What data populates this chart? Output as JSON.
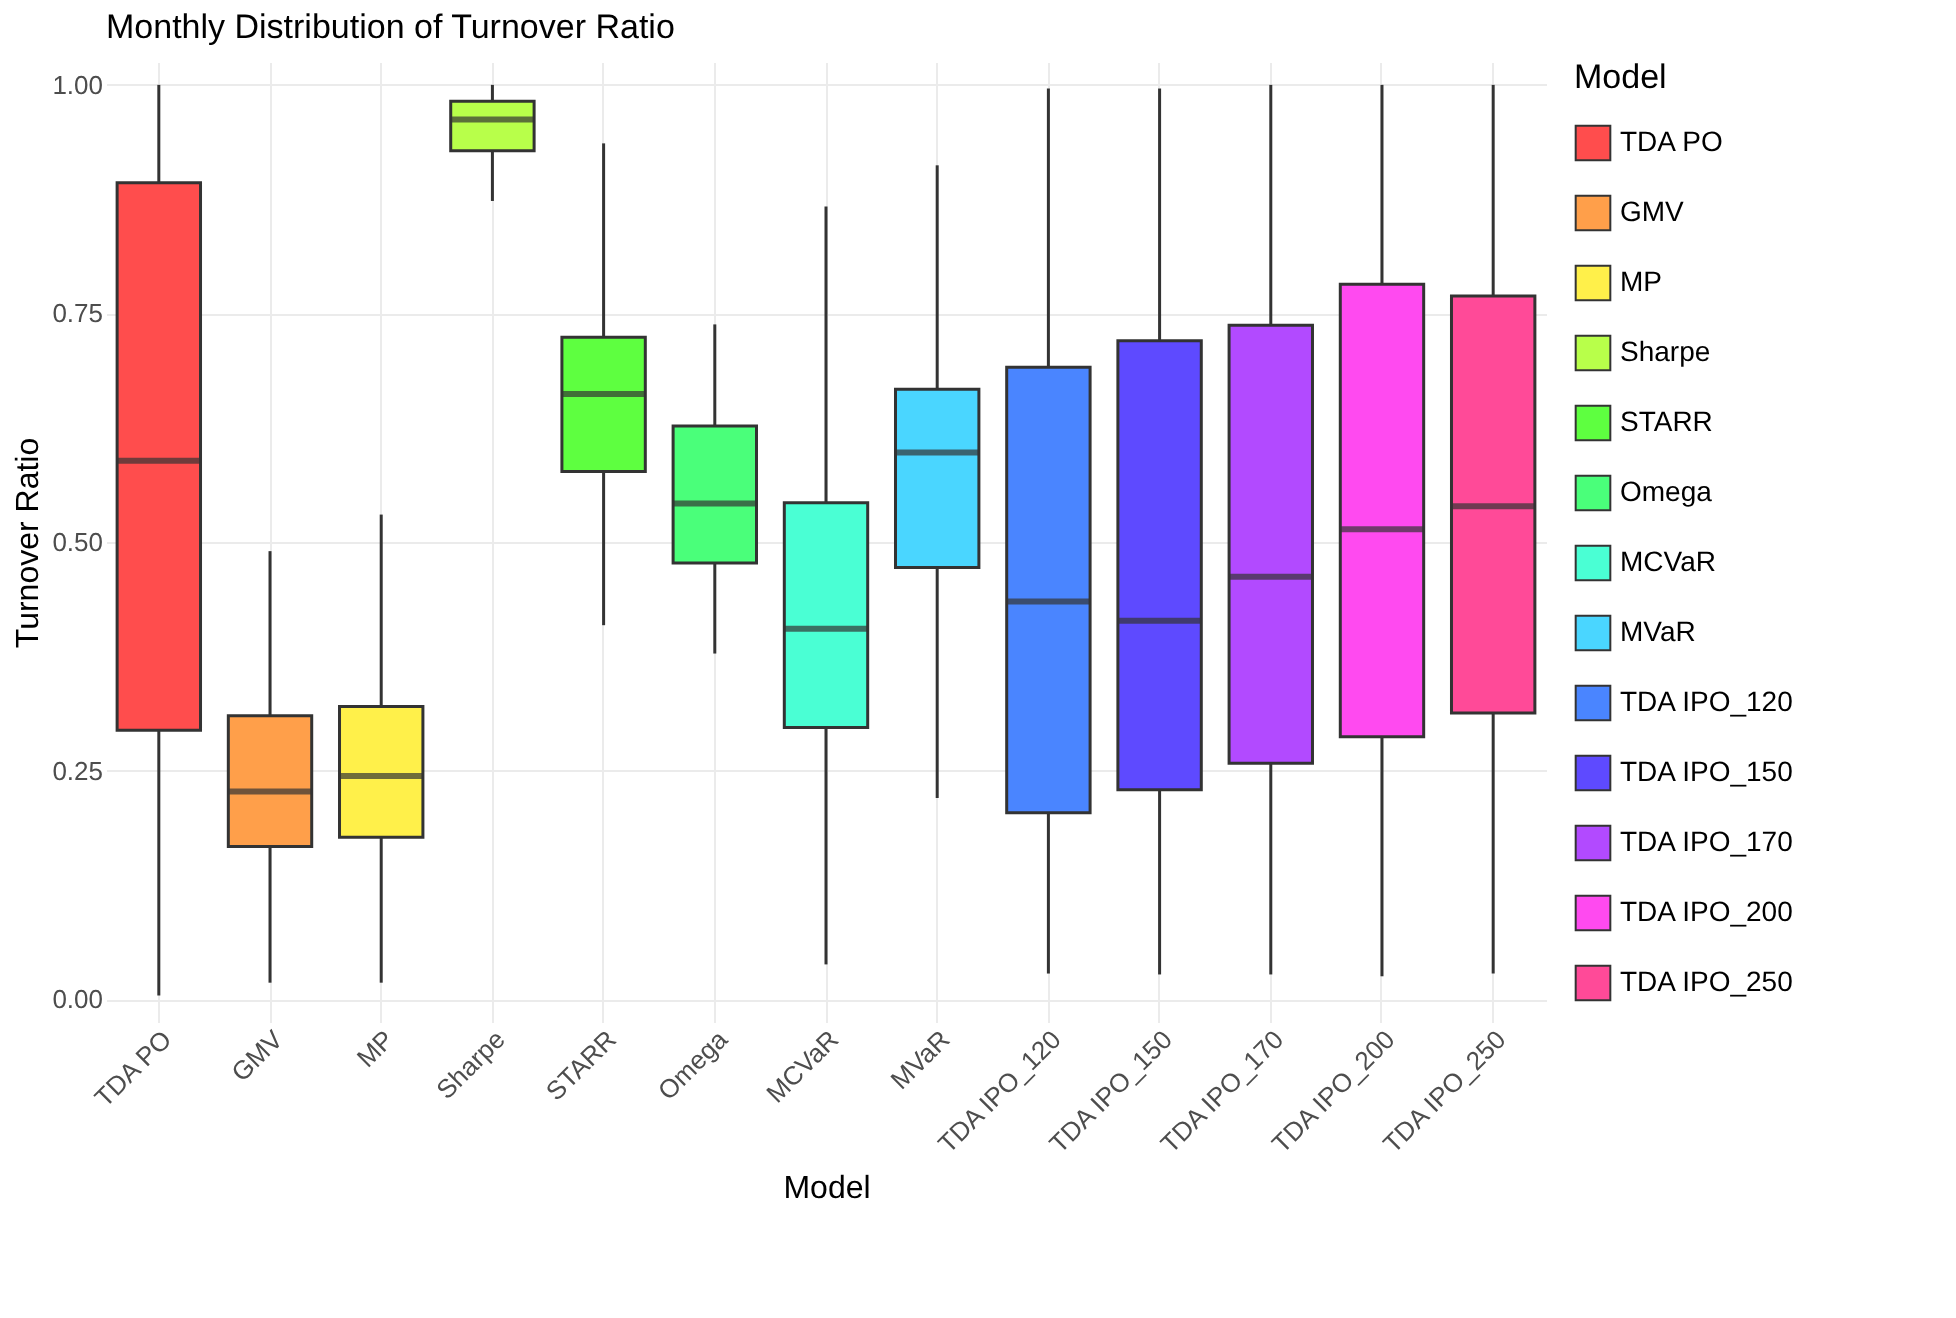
{
  "chart_data": {
    "type": "box",
    "title": "Monthly Distribution of Turnover Ratio",
    "xlabel": "Model",
    "ylabel": "Turnover Ratio",
    "legend_title": "Model",
    "categories": [
      "TDA PO",
      "GMV",
      "MP",
      "Sharpe",
      "STARR",
      "Omega",
      "MCVaR",
      "MVaR",
      "TDA IPO_120",
      "TDA IPO_150",
      "TDA IPO_170",
      "TDA IPO_200",
      "TDA IPO_250"
    ],
    "series": [
      {
        "name": "TDA PO",
        "color": "#ff4d4d",
        "boxes": [
          {
            "low": 0.004,
            "q1": 0.294,
            "median": 0.589,
            "q3": 0.893,
            "high": 1.0
          },
          null,
          null,
          null,
          null,
          null,
          null,
          null,
          null,
          null,
          null,
          null,
          null
        ]
      },
      {
        "name": "GMV",
        "color": "#ff9f4a",
        "boxes": [
          null,
          {
            "low": 0.018,
            "q1": 0.167,
            "median": 0.227,
            "q3": 0.31,
            "high": 0.49
          },
          null,
          null,
          null,
          null,
          null,
          null,
          null,
          null,
          null,
          null,
          null
        ]
      },
      {
        "name": "MP",
        "color": "#fff04a",
        "boxes": [
          null,
          null,
          {
            "low": 0.018,
            "q1": 0.177,
            "median": 0.244,
            "q3": 0.32,
            "high": 0.53
          },
          null,
          null,
          null,
          null,
          null,
          null,
          null,
          null,
          null,
          null
        ]
      },
      {
        "name": "Sharpe",
        "color": "#b8ff4a",
        "boxes": [
          null,
          null,
          null,
          {
            "low": 0.873,
            "q1": 0.928,
            "median": 0.962,
            "q3": 0.982,
            "high": 1.0
          },
          null,
          null,
          null,
          null,
          null,
          null,
          null,
          null,
          null
        ]
      },
      {
        "name": "STARR",
        "color": "#5eff40",
        "boxes": [
          null,
          null,
          null,
          null,
          {
            "low": 0.409,
            "q1": 0.577,
            "median": 0.662,
            "q3": 0.724,
            "high": 0.936
          },
          null,
          null,
          null,
          null,
          null,
          null,
          null,
          null
        ]
      },
      {
        "name": "Omega",
        "color": "#4aff7a",
        "boxes": [
          null,
          null,
          null,
          null,
          null,
          {
            "low": 0.378,
            "q1": 0.477,
            "median": 0.542,
            "q3": 0.627,
            "high": 0.738
          },
          null,
          null,
          null,
          null,
          null,
          null,
          null
        ]
      },
      {
        "name": "MCVaR",
        "color": "#4affd4",
        "boxes": [
          null,
          null,
          null,
          null,
          null,
          null,
          {
            "low": 0.038,
            "q1": 0.297,
            "median": 0.405,
            "q3": 0.543,
            "high": 0.867
          },
          null,
          null,
          null,
          null,
          null,
          null
        ]
      },
      {
        "name": "MVaR",
        "color": "#4ad6ff",
        "boxes": [
          null,
          null,
          null,
          null,
          null,
          null,
          null,
          {
            "low": 0.22,
            "q1": 0.472,
            "median": 0.598,
            "q3": 0.667,
            "high": 0.912
          },
          null,
          null,
          null,
          null,
          null
        ]
      },
      {
        "name": "TDA IPO_120",
        "color": "#4a85ff",
        "boxes": [
          null,
          null,
          null,
          null,
          null,
          null,
          null,
          null,
          {
            "low": 0.028,
            "q1": 0.204,
            "median": 0.435,
            "q3": 0.691,
            "high": 0.996
          },
          null,
          null,
          null,
          null
        ]
      },
      {
        "name": "TDA IPO_150",
        "color": "#5e4aff",
        "boxes": [
          null,
          null,
          null,
          null,
          null,
          null,
          null,
          null,
          null,
          {
            "low": 0.027,
            "q1": 0.229,
            "median": 0.414,
            "q3": 0.72,
            "high": 0.996
          },
          null,
          null,
          null
        ]
      },
      {
        "name": "TDA IPO_170",
        "color": "#b24aff",
        "boxes": [
          null,
          null,
          null,
          null,
          null,
          null,
          null,
          null,
          null,
          null,
          {
            "low": 0.027,
            "q1": 0.258,
            "median": 0.462,
            "q3": 0.737,
            "high": 1.0
          },
          null,
          null
        ]
      },
      {
        "name": "TDA IPO_200",
        "color": "#ff4af0",
        "boxes": [
          null,
          null,
          null,
          null,
          null,
          null,
          null,
          null,
          null,
          null,
          null,
          {
            "low": 0.025,
            "q1": 0.287,
            "median": 0.514,
            "q3": 0.782,
            "high": 1.0
          },
          null
        ]
      },
      {
        "name": "TDA IPO_250",
        "color": "#ff4a98",
        "boxes": [
          null,
          null,
          null,
          null,
          null,
          null,
          null,
          null,
          null,
          null,
          null,
          null,
          {
            "low": 0.028,
            "q1": 0.313,
            "median": 0.539,
            "q3": 0.769,
            "high": 1.0
          }
        ]
      }
    ],
    "ylim": [
      -0.025,
      1.025
    ],
    "yticks": [
      {
        "value": 0,
        "label": "0.00"
      },
      {
        "value": 0.25,
        "label": "0.25"
      },
      {
        "value": 0.5,
        "label": "0.50"
      },
      {
        "value": 0.75,
        "label": "0.75"
      },
      {
        "value": 1,
        "label": "1.00"
      }
    ],
    "grid": true,
    "legend": "right"
  }
}
